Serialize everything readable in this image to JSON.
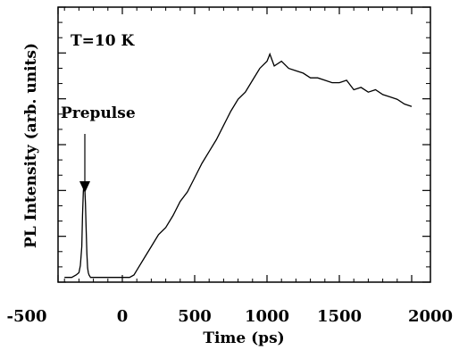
{
  "chart_data": {
    "type": "line",
    "title": "",
    "xlabel": "Time (ps)",
    "ylabel": "PL Intensity (arb. units)",
    "xlim": [
      -400,
      2000
    ],
    "ylim": [
      0,
      1
    ],
    "x_ticks": [
      -500,
      0,
      500,
      1000,
      1500,
      2000
    ],
    "annotations": {
      "temperature": "T=10 K",
      "prepulse": "Prepulse"
    },
    "series": [
      {
        "x": [
          -400,
          -350,
          -320,
          -300,
          -290,
          -280,
          -275,
          -270,
          -265,
          -260,
          -255,
          -250,
          -245,
          -240,
          -235,
          -230,
          -220,
          -200,
          -150,
          -100,
          -50,
          0,
          50,
          80,
          100,
          150,
          200,
          250,
          300,
          350,
          400,
          450,
          500,
          550,
          600,
          650,
          700,
          750,
          800,
          850,
          900,
          950,
          1000,
          1020,
          1050,
          1100,
          1150,
          1200,
          1250,
          1300,
          1350,
          1400,
          1450,
          1500,
          1550,
          1600,
          1650,
          1700,
          1750,
          1800,
          1850,
          1900,
          1950,
          2000
        ],
        "y": [
          0.02,
          0.02,
          0.03,
          0.04,
          0.07,
          0.15,
          0.28,
          0.38,
          0.42,
          0.4,
          0.33,
          0.22,
          0.12,
          0.06,
          0.04,
          0.03,
          0.02,
          0.02,
          0.02,
          0.02,
          0.02,
          0.02,
          0.02,
          0.03,
          0.05,
          0.1,
          0.15,
          0.2,
          0.23,
          0.28,
          0.34,
          0.38,
          0.44,
          0.5,
          0.55,
          0.6,
          0.66,
          0.72,
          0.77,
          0.8,
          0.85,
          0.9,
          0.93,
          0.96,
          0.91,
          0.93,
          0.9,
          0.89,
          0.88,
          0.86,
          0.86,
          0.85,
          0.84,
          0.84,
          0.85,
          0.81,
          0.82,
          0.8,
          0.81,
          0.79,
          0.78,
          0.77,
          0.75,
          0.74
        ]
      }
    ]
  }
}
